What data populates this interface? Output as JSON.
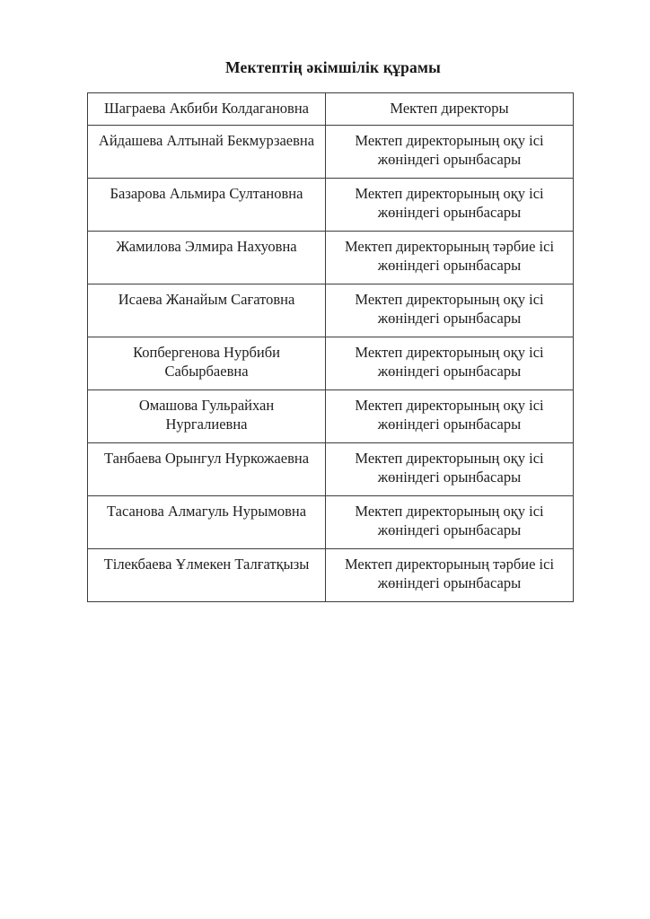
{
  "document": {
    "title": "Мектептің әкімшілік құрамы",
    "table": {
      "rows": [
        {
          "name": "Шаграева Акбиби Колдагановна",
          "position": "Мектеп директоры"
        },
        {
          "name": "Айдашева Алтынай Бекмурзаевна",
          "position": "Мектеп директорының оқу ісі жөніндегі орынбасары"
        },
        {
          "name": "Базарова Альмира Султановна",
          "position": "Мектеп директорының оқу ісі жөніндегі орынбасары"
        },
        {
          "name": "Жамилова Элмира Нахуовна",
          "position": "Мектеп директорының тәрбие ісі жөніндегі орынбасары"
        },
        {
          "name": "Исаева Жанайым Сағатовна",
          "position": "Мектеп директорының оқу ісі жөніндегі орынбасары"
        },
        {
          "name": "Копбергенова Нурбиби Сабырбаевна",
          "position": "Мектеп директорының оқу ісі жөніндегі орынбасары"
        },
        {
          "name": "Омашова Гульрайхан Нургалиевна",
          "position": "Мектеп директорының оқу ісі жөніндегі орынбасары"
        },
        {
          "name": "Танбаева Орынгул Нуркожаевна",
          "position": "Мектеп директорының оқу ісі жөніндегі орынбасары"
        },
        {
          "name": "Тасанова Алмагуль Нурымовна",
          "position": "Мектеп директорының оқу ісі жөніндегі орынбасары"
        },
        {
          "name": "Тілекбаева Ұлмекен Талғатқызы",
          "position": "Мектеп директорының тәрбие ісі жөніндегі орынбасары"
        }
      ]
    }
  }
}
